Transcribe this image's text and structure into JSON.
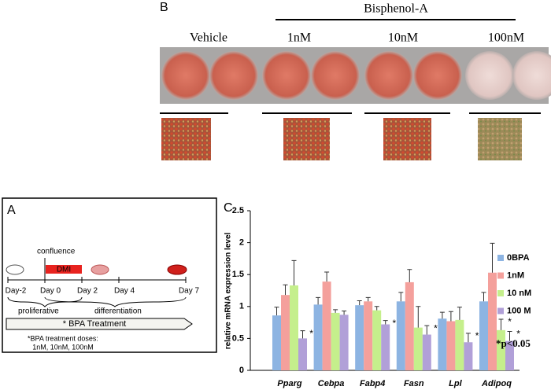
{
  "panel_b": {
    "letter": "B",
    "group_label": "Bisphenol-A",
    "conditions": [
      "Vehicle",
      "1nM",
      "10nM",
      "100nM"
    ]
  },
  "panel_a": {
    "letter": "A",
    "event": "confluence",
    "dmi": "DMI",
    "days": [
      "Day-2",
      "Day 0",
      "Day 2",
      "Day 4",
      "Day 7"
    ],
    "phases": [
      "proliferative",
      "differentiation"
    ],
    "treatment": "* BPA Treatment",
    "doses": [
      "*BPA treatment doses:",
      "1nM, 10nM, 100nM"
    ]
  },
  "chart_data": {
    "type": "bar",
    "letter": "C",
    "y_label": "relative mRNA expression level",
    "categories": [
      "Pparg",
      "Cebpa",
      "Fabp4",
      "Fasn",
      "Lpl",
      "Adipoq"
    ],
    "series": [
      {
        "name": "0BPA",
        "color": "#8db4e2",
        "values": [
          0.86,
          1.03,
          1.02,
          1.08,
          0.81,
          1.08
        ],
        "errors": [
          0.13,
          0.11,
          0.07,
          0.14,
          0.1,
          0.14
        ],
        "stars": [
          null,
          null,
          null,
          null,
          null,
          null
        ]
      },
      {
        "name": "1nM",
        "color": "#f4a09c",
        "values": [
          1.18,
          1.39,
          1.08,
          1.38,
          0.77,
          1.53
        ],
        "errors": [
          0.16,
          0.15,
          0.06,
          0.2,
          0.15,
          0.46
        ],
        "stars": [
          null,
          null,
          null,
          null,
          null,
          null
        ]
      },
      {
        "name": "10 nM",
        "color": "#c5ef8c",
        "values": [
          1.33,
          0.9,
          0.94,
          0.67,
          0.79,
          0.63
        ],
        "errors": [
          0.39,
          0.05,
          0.06,
          0.33,
          0.2,
          0.17
        ],
        "stars": [
          null,
          null,
          null,
          null,
          null,
          "*"
        ]
      },
      {
        "name": "100 M",
        "color": "#b1a0d8",
        "values": [
          0.5,
          0.87,
          0.72,
          0.56,
          0.44,
          0.46
        ],
        "errors": [
          0.12,
          0.06,
          0.06,
          0.14,
          0.14,
          0.15
        ],
        "stars": [
          "*",
          null,
          "*",
          "*",
          "*",
          "*"
        ]
      }
    ],
    "note": "*p<0.05",
    "ylim": [
      0,
      2.5
    ],
    "yticks": [
      0,
      0.5,
      1,
      1.5,
      2,
      2.5
    ]
  }
}
